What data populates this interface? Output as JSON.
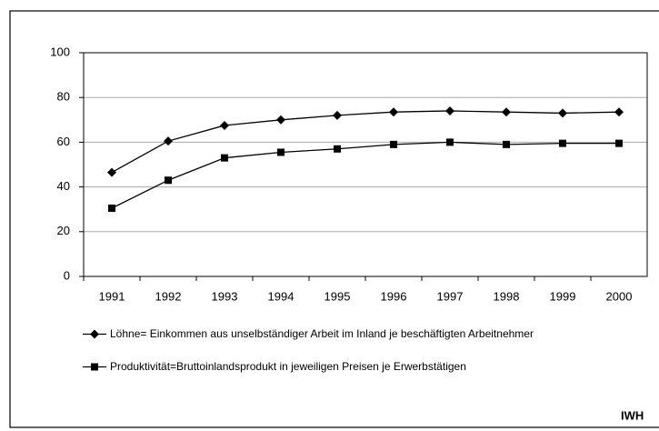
{
  "chart_data": {
    "type": "line",
    "categories": [
      "1991",
      "1992",
      "1993",
      "1994",
      "1995",
      "1996",
      "1997",
      "1998",
      "1999",
      "2000"
    ],
    "series": [
      {
        "name": "Löhne= Einkommen aus unselbständiger Arbeit im Inland je beschäftigten Arbeitnehmer",
        "color": "#000000",
        "marker": "diamond",
        "values": [
          46.5,
          60.5,
          67.5,
          70,
          72,
          73.5,
          74,
          73.5,
          73,
          73.5
        ]
      },
      {
        "name": "Produktivität=Bruttoinlandsprodukt in jeweiligen Preisen je Erwerbstätigen",
        "color": "#000000",
        "marker": "square",
        "values": [
          30.5,
          43,
          53,
          55.5,
          57,
          59,
          60,
          59,
          59.5,
          59.5
        ]
      }
    ],
    "ylim": [
      0,
      100
    ],
    "yticks": [
      0,
      20,
      40,
      60,
      80,
      100
    ],
    "grid": true,
    "annotation": "IWH"
  }
}
